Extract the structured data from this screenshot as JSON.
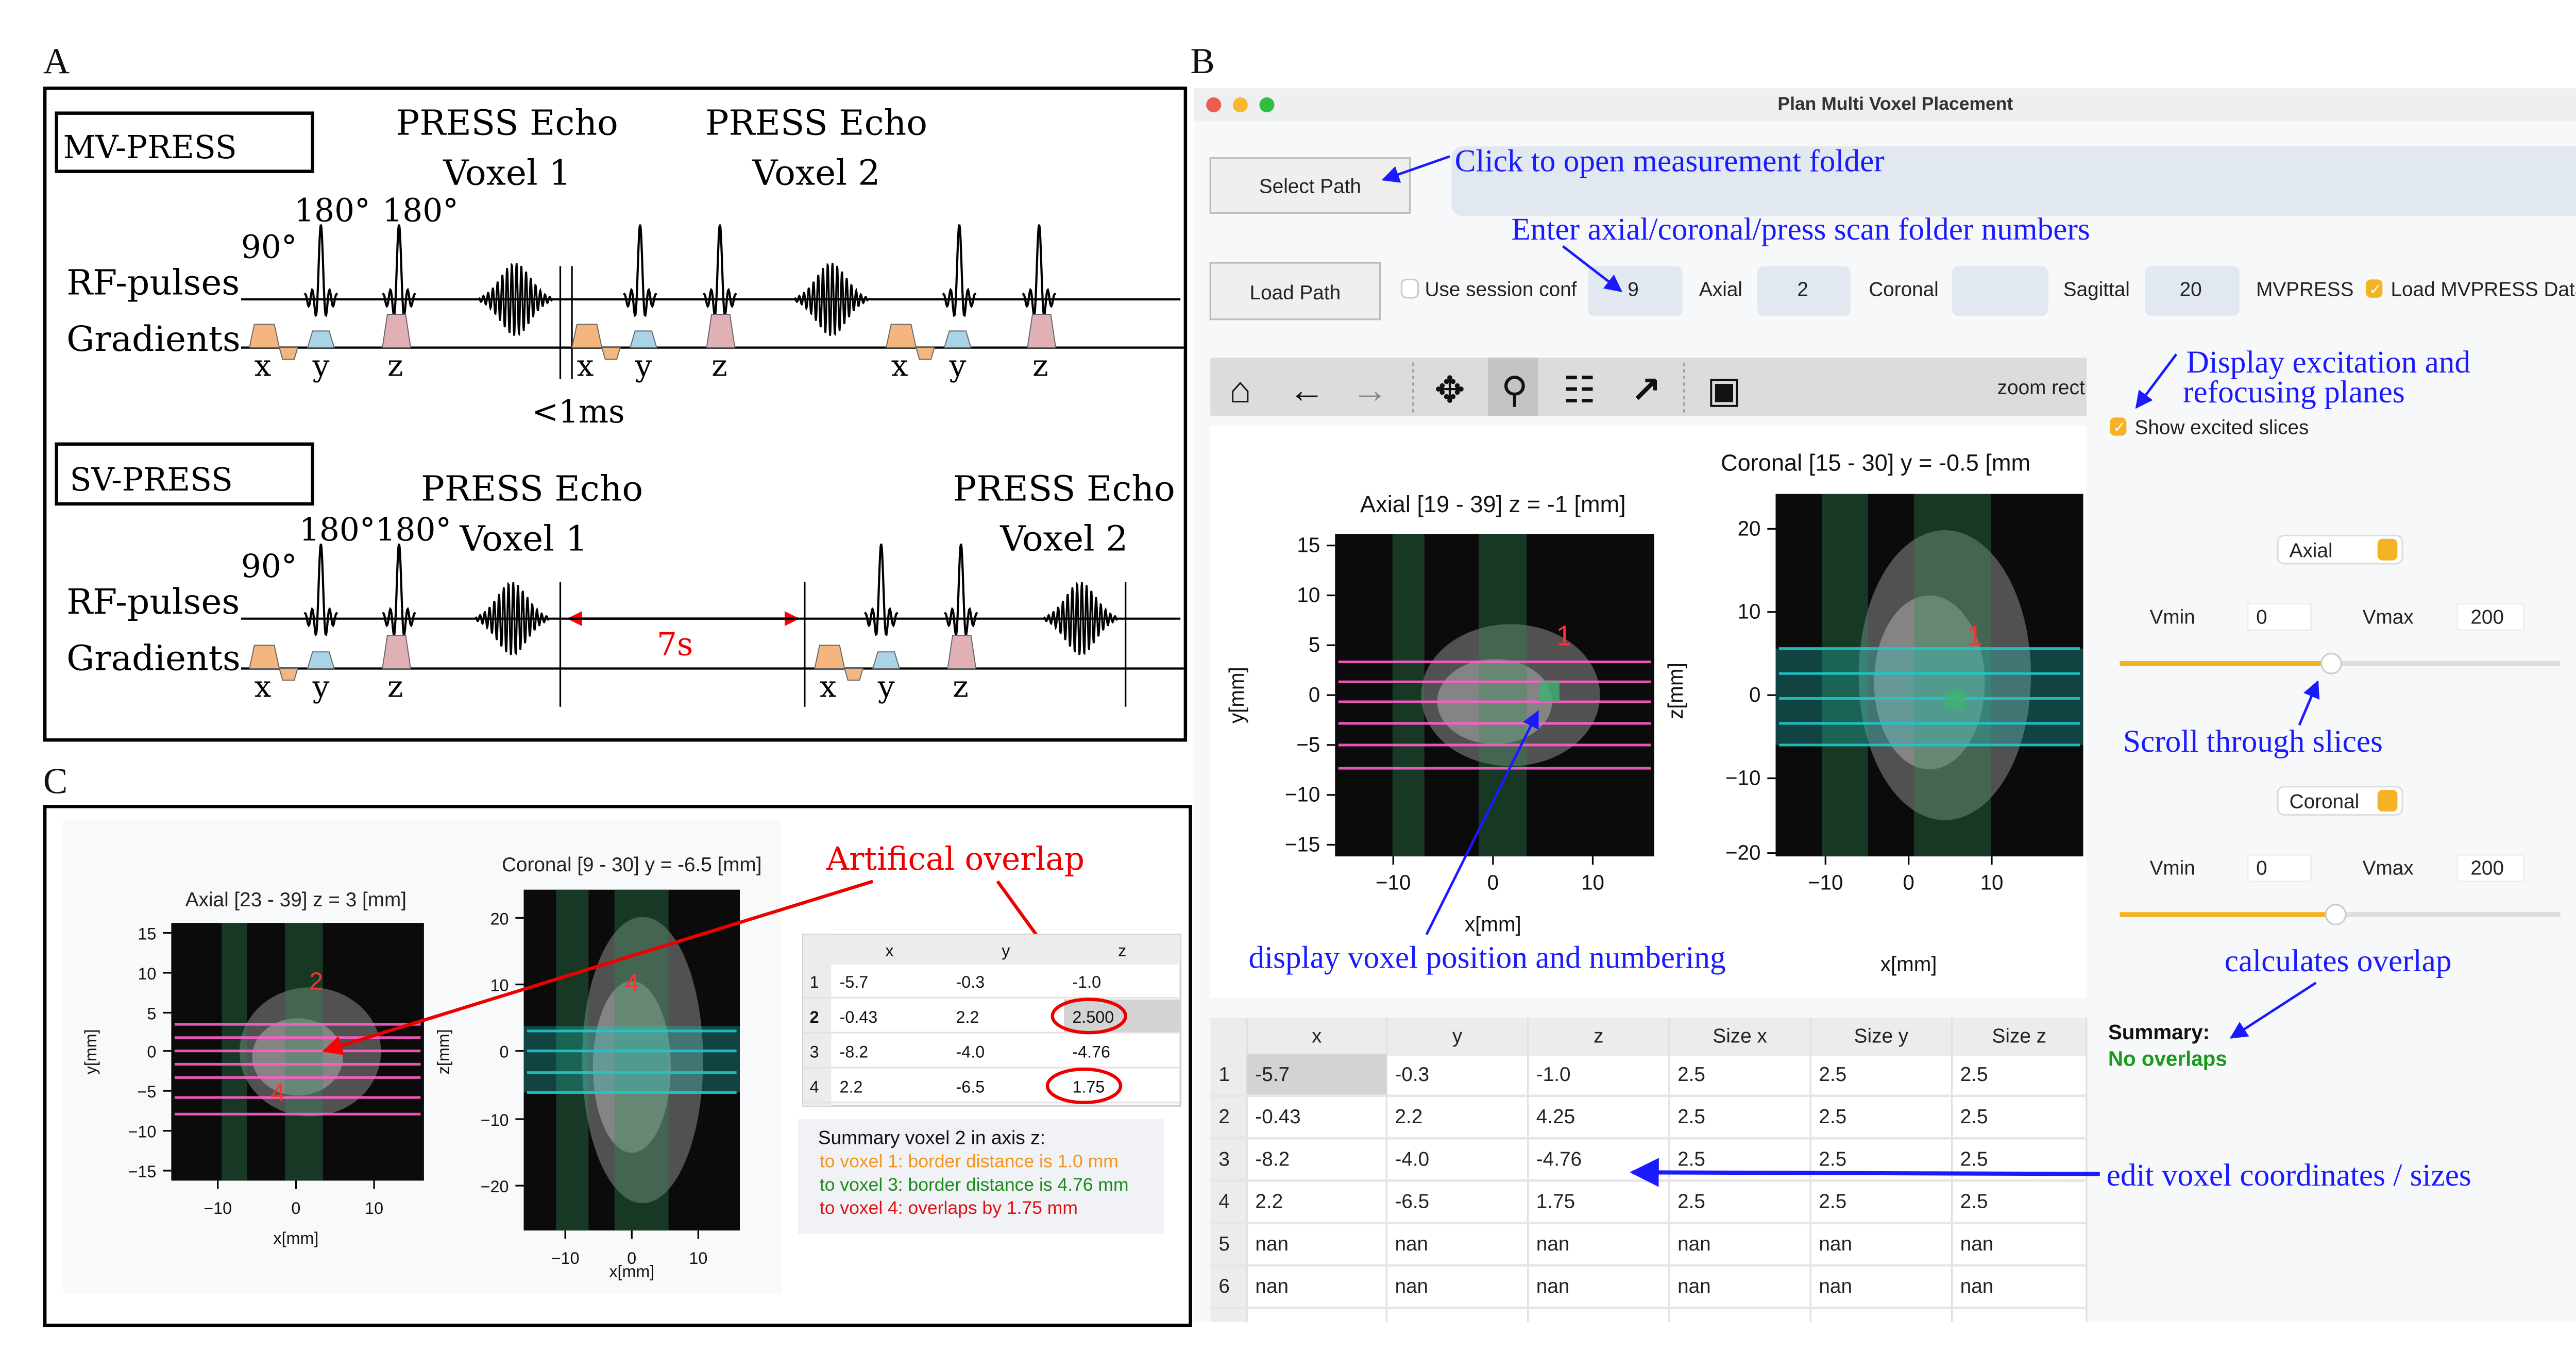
{
  "panel_labels": {
    "a": "A",
    "b": "B",
    "c": "C"
  },
  "panel_a": {
    "mv_label": "MV-PRESS",
    "sv_label": "SV-PRESS",
    "echo_title": "PRESS Echo",
    "voxel1": "Voxel 1",
    "voxel2": "Voxel 2",
    "angle_90": "90°",
    "angle_180": "180°",
    "angle_180_pair": "180°180°",
    "rf_label": "RF-pulses",
    "grad_label": "Gradients",
    "axis_x": "x",
    "axis_y": "y",
    "axis_z": "z",
    "gap_short": "<1ms",
    "gap_long": "7s"
  },
  "panel_b": {
    "window_title": "Plan Multi Voxel Placement",
    "select_path": "Select Path",
    "load_path": "Load Path",
    "use_session_conf": "Use session conf",
    "use_session_conf_checked": false,
    "inputs": {
      "axial": "9",
      "coronal": "2",
      "sagittal": "",
      "mvpress": "20"
    },
    "input_labels": {
      "axial": "Axial",
      "coronal": "Coronal",
      "sagittal": "Sagittal",
      "mvpress": "MVPRESS"
    },
    "load_mvpress": "Load MVPRESS Data",
    "load_mvpress_checked": true,
    "toolbar": {
      "icons": [
        "home-icon",
        "back-arrow-icon",
        "forward-arrow-icon",
        "pan-icon",
        "zoom-icon",
        "configure-subplots-icon",
        "edit-axis-icon",
        "save-icon"
      ],
      "mode": "zoom rect"
    },
    "show_excited": "Show excited slices",
    "show_excited_checked": true,
    "axial_plot": {
      "title": "Axial [19 - 39] z = -1 [mm]",
      "xlabel": "x[mm]",
      "ylabel": "y[mm]",
      "xticks": [
        "−10",
        "0",
        "10"
      ],
      "yticks": [
        "15",
        "10",
        "5",
        "0",
        "−5",
        "−10",
        "−15"
      ],
      "marker": "1"
    },
    "coronal_plot": {
      "title": "Coronal [15 - 30] y = -0.5 [mm",
      "xlabel": "x[mm]",
      "ylabel": "z[mm]",
      "xticks": [
        "−10",
        "0",
        "10"
      ],
      "yticks": [
        "20",
        "10",
        "0",
        "−10",
        "−20"
      ],
      "marker": "1"
    },
    "view1": {
      "select": "Axial",
      "vmin_label": "Vmin",
      "vmin": "0",
      "vmax_label": "Vmax",
      "vmax": "200",
      "slider": 0.48
    },
    "view2": {
      "select": "Coronal",
      "vmin_label": "Vmin",
      "vmin": "0",
      "vmax_label": "Vmax",
      "vmax": "200",
      "slider": 0.49
    },
    "summary_title": "Summary:",
    "summary_status": "No overlaps",
    "table": {
      "headers": [
        "x",
        "y",
        "z",
        "Size x",
        "Size y",
        "Size z"
      ],
      "rows": [
        {
          "index": "1",
          "cells": [
            "-5.7",
            "-0.3",
            "-1.0",
            "2.5",
            "2.5",
            "2.5"
          ]
        },
        {
          "index": "2",
          "cells": [
            "-0.43",
            "2.2",
            "4.25",
            "2.5",
            "2.5",
            "2.5"
          ]
        },
        {
          "index": "3",
          "cells": [
            "-8.2",
            "-4.0",
            "-4.76",
            "2.5",
            "2.5",
            "2.5"
          ]
        },
        {
          "index": "4",
          "cells": [
            "2.2",
            "-6.5",
            "1.75",
            "2.5",
            "2.5",
            "2.5"
          ]
        },
        {
          "index": "5",
          "cells": [
            "nan",
            "nan",
            "nan",
            "nan",
            "nan",
            "nan"
          ]
        },
        {
          "index": "6",
          "cells": [
            "nan",
            "nan",
            "nan",
            "nan",
            "nan",
            "nan"
          ]
        }
      ]
    },
    "annotations": {
      "select_path": "Click to open measurement folder",
      "folder_numbers": "Enter axial/coronal/press scan folder numbers",
      "display_planes_1": "Display excitation and",
      "display_planes_2": "refocusing planes",
      "scroll": "Scroll through slices",
      "voxel_position": "display voxel position and numbering",
      "overlap": "calculates overlap",
      "edit": "edit voxel coordinates / sizes"
    }
  },
  "panel_c": {
    "annotation": "Artifical overlap",
    "axial_plot": {
      "title": "Axial [23 - 39] z = 3 [mm]",
      "xlabel": "x[mm]",
      "ylabel": "y[mm]",
      "xticks": [
        "−10",
        "0",
        "10"
      ],
      "yticks": [
        "15",
        "10",
        "5",
        "0",
        "−5",
        "−10",
        "−15"
      ],
      "markers": [
        "2",
        "4"
      ]
    },
    "coronal_plot": {
      "title": "Coronal [9 - 30] y = -6.5 [mm]",
      "xlabel": "x[mm]",
      "ylabel": "z[mm]",
      "xticks": [
        "−10",
        "0",
        "10"
      ],
      "yticks": [
        "20",
        "10",
        "0",
        "−10",
        "−20"
      ],
      "marker": "4"
    },
    "table": {
      "headers": [
        "x",
        "y",
        "z"
      ],
      "rows": [
        {
          "index": "1",
          "cells": [
            "-5.7",
            "-0.3",
            "-1.0"
          ]
        },
        {
          "index": "2",
          "cells": [
            "-0.43",
            "2.2",
            "2.500"
          ]
        },
        {
          "index": "3",
          "cells": [
            "-8.2",
            "-4.0",
            "-4.76"
          ]
        },
        {
          "index": "4",
          "cells": [
            "2.2",
            "-6.5",
            "1.75"
          ]
        }
      ]
    },
    "summary": {
      "title": "Summary voxel 2 in axis z:",
      "lines": [
        {
          "text": "to voxel 1: border distance is 1.0 mm",
          "color": "#f0961e"
        },
        {
          "text": "to voxel 3: border distance is 4.76 mm",
          "color": "#1a8a1a"
        },
        {
          "text": "to voxel 4: overlaps by 1.75 mm",
          "color": "#e01010"
        }
      ]
    }
  },
  "colors": {
    "annotation": "#1a1aff",
    "highlight": "#ff0000",
    "accent": "#f5b324",
    "ok": "#1a9a1a"
  }
}
